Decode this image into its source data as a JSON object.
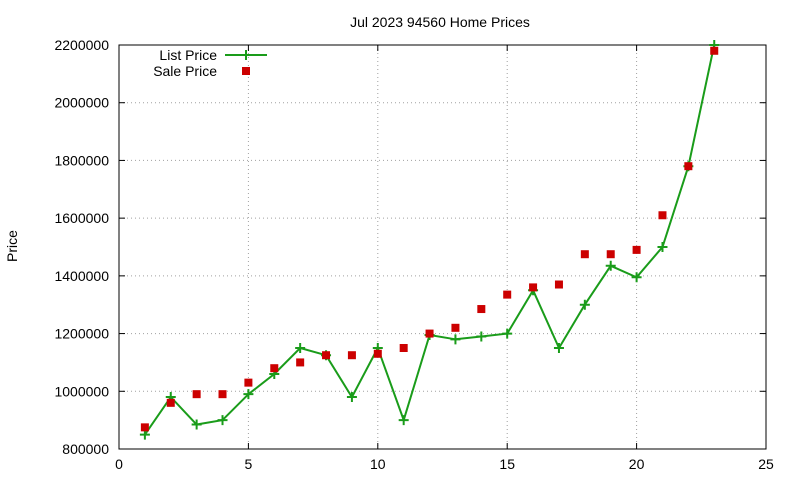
{
  "chart_data": {
    "type": "line",
    "title": "Jul 2023 94560 Home Prices",
    "xlabel": "",
    "ylabel": "Price",
    "xlim": [
      0,
      25
    ],
    "ylim": [
      800000,
      2200000
    ],
    "xticks": [
      0,
      5,
      10,
      15,
      20,
      25
    ],
    "yticks": [
      800000,
      1000000,
      1200000,
      1400000,
      1600000,
      1800000,
      2000000,
      2200000
    ],
    "grid": true,
    "legend_position": "top-left",
    "series": [
      {
        "name": "List Price",
        "style": "line-points",
        "marker": "plus",
        "color": "#1a9c1a",
        "x": [
          1,
          2,
          3,
          4,
          5,
          6,
          7,
          8,
          9,
          10,
          11,
          12,
          13,
          14,
          15,
          16,
          17,
          18,
          19,
          20,
          21,
          22,
          23
        ],
        "y": [
          850000,
          980000,
          885000,
          900000,
          990000,
          1060000,
          1150000,
          1125000,
          980000,
          1150000,
          900000,
          1195000,
          1180000,
          1190000,
          1200000,
          1350000,
          1150000,
          1300000,
          1435000,
          1395000,
          1500000,
          1780000,
          2200000
        ]
      },
      {
        "name": "Sale Price",
        "style": "points",
        "marker": "square",
        "color": "#cc0000",
        "x": [
          1,
          2,
          3,
          4,
          5,
          6,
          7,
          8,
          9,
          10,
          11,
          12,
          13,
          14,
          15,
          16,
          17,
          18,
          19,
          20,
          21,
          22,
          23
        ],
        "y": [
          875000,
          960000,
          990000,
          990000,
          1030000,
          1080000,
          1100000,
          1125000,
          1125000,
          1130000,
          1150000,
          1200000,
          1220000,
          1285000,
          1335000,
          1360000,
          1370000,
          1475000,
          1475000,
          1490000,
          1610000,
          1780000,
          2180000
        ]
      }
    ]
  }
}
